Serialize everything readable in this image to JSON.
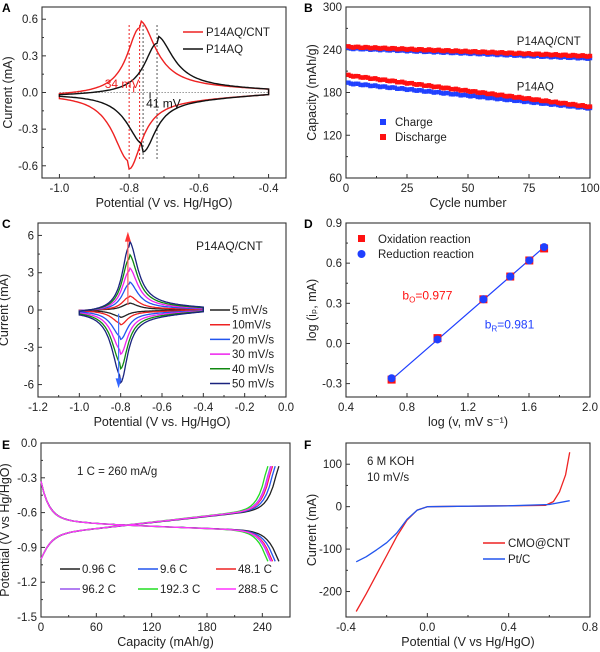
{
  "chart_data": [
    {
      "panel": "A",
      "type": "line",
      "xlabel": "Potential (V vs. Hg/HgO)",
      "ylabel": "Current (mA)",
      "xlim": [
        -1.05,
        -0.35
      ],
      "ylim": [
        -0.7,
        0.7
      ],
      "xticks": [
        -1.0,
        -0.8,
        -0.6,
        -0.4
      ],
      "xtick_labels": [
        "-1.0",
        "-0.8",
        "-0.6",
        "-0.4"
      ],
      "yticks": [
        -0.6,
        -0.3,
        0.0,
        0.3,
        0.6
      ],
      "ytick_labels": [
        "-0.6",
        "-0.3",
        "0.0",
        "0.3",
        "0.6"
      ],
      "legend": {
        "position": "top-right",
        "entries": [
          "P14AQ/CNT",
          "P14AQ"
        ]
      },
      "series": [
        {
          "name": "P14AQ/CNT",
          "color": "#ee2222",
          "anodic_peak": [
            -0.77,
            0.54
          ],
          "cathodic_peak": [
            -0.8,
            -0.55
          ],
          "x_range": [
            -1.0,
            -0.4
          ]
        },
        {
          "name": "P14AQ",
          "color": "#111111",
          "anodic_peak": [
            -0.72,
            0.41
          ],
          "cathodic_peak": [
            -0.76,
            -0.41
          ],
          "x_range": [
            -1.0,
            -0.4
          ]
        }
      ],
      "annotations": [
        {
          "text": "34 mV",
          "color": "#ee2222",
          "x": -0.87,
          "y": 0.07
        },
        {
          "text": "41 mV",
          "color": "#111111",
          "x": -0.76,
          "y": -0.09
        }
      ],
      "guide_lines": [
        {
          "x": -0.77,
          "color": "#ee2222"
        },
        {
          "x": -0.8,
          "color": "#ee2222"
        },
        {
          "x": -0.72,
          "color": "#555555"
        },
        {
          "x": -0.76,
          "color": "#555555"
        }
      ]
    },
    {
      "panel": "B",
      "type": "scatter",
      "xlabel": "Cycle number",
      "ylabel": "Capacity (mAh/g)",
      "xlim": [
        0,
        100
      ],
      "ylim": [
        60,
        300
      ],
      "xticks": [
        0,
        25,
        50,
        75,
        100
      ],
      "xtick_labels": [
        "0",
        "25",
        "50",
        "75",
        "100"
      ],
      "yticks": [
        60,
        120,
        180,
        240,
        300
      ],
      "ytick_labels": [
        "60",
        "120",
        "180",
        "240",
        "300"
      ],
      "legend": {
        "position": "center-left",
        "entries": [
          "Charge",
          "Discharge"
        ]
      },
      "series": [
        {
          "name": "P14AQ/CNT Charge",
          "color": "#1f3fff",
          "x": [
            1,
            100
          ],
          "y_start": 242,
          "y_end": 228
        },
        {
          "name": "P14AQ/CNT Discharge",
          "color": "#ff1111",
          "x": [
            1,
            100
          ],
          "y_start": 244,
          "y_end": 231
        },
        {
          "name": "P14AQ Charge",
          "color": "#1f3fff",
          "x": [
            1,
            100
          ],
          "y_start": 193,
          "y_end": 158
        },
        {
          "name": "P14AQ Discharge",
          "color": "#ff1111",
          "x": [
            1,
            100
          ],
          "y_start": 204,
          "y_end": 160
        }
      ],
      "annotations": [
        {
          "text": "P14AQ/CNT",
          "x": 70,
          "y": 247
        },
        {
          "text": "P14AQ",
          "x": 70,
          "y": 183
        }
      ]
    },
    {
      "panel": "C",
      "type": "line",
      "xlabel": "Potential (V vs. Hg/HgO)",
      "ylabel": "Current (mA)",
      "xlim": [
        -1.2,
        0.0
      ],
      "ylim": [
        -7,
        7
      ],
      "xticks": [
        -1.2,
        -1.0,
        -0.8,
        -0.6,
        -0.4,
        -0.2,
        0.0
      ],
      "xtick_labels": [
        "-1.2",
        "-1.0",
        "-0.8",
        "-0.6",
        "-0.4",
        "-0.2",
        "0.0"
      ],
      "yticks": [
        -6,
        -3,
        0,
        3,
        6
      ],
      "ytick_labels": [
        "-6",
        "-3",
        "0",
        "3",
        "6"
      ],
      "title": "P14AQ/CNT",
      "legend": {
        "position": "right",
        "entries": [
          "5 mV/s",
          "10mV/s",
          "20 mV/s",
          "30 mV/s",
          "40 mV/s",
          "50 mV/s"
        ]
      },
      "series": [
        {
          "name": "5 mV/s",
          "color": "#222222",
          "anodic_peak": [
            -0.76,
            0.52
          ],
          "cathodic_peak": [
            -0.8,
            -0.52
          ]
        },
        {
          "name": "10mV/s",
          "color": "#ee2222",
          "anodic_peak": [
            -0.76,
            1.05
          ],
          "cathodic_peak": [
            -0.8,
            -1.05
          ]
        },
        {
          "name": "20 mV/s",
          "color": "#2255ee",
          "anodic_peak": [
            -0.76,
            2.1
          ],
          "cathodic_peak": [
            -0.8,
            -2.1
          ]
        },
        {
          "name": "30 mV/s",
          "color": "#ee22ee",
          "anodic_peak": [
            -0.76,
            3.15
          ],
          "cathodic_peak": [
            -0.8,
            -3.15
          ]
        },
        {
          "name": "40 mV/s",
          "color": "#118811",
          "anodic_peak": [
            -0.76,
            4.15
          ],
          "cathodic_peak": [
            -0.8,
            -4.2
          ]
        },
        {
          "name": "50 mV/s",
          "color": "#1a237e",
          "anodic_peak": [
            -0.76,
            5.15
          ],
          "cathodic_peak": [
            -0.8,
            -5.2
          ]
        }
      ]
    },
    {
      "panel": "D",
      "type": "scatter",
      "xlabel": "log (v, mV s⁻¹)",
      "ylabel": "log (iₚ, mA)",
      "xlim": [
        0.4,
        2.0
      ],
      "ylim": [
        -0.4,
        0.9
      ],
      "xticks": [
        0.4,
        0.8,
        1.2,
        1.6,
        2.0
      ],
      "xtick_labels": [
        "0.4",
        "0.8",
        "1.2",
        "1.6",
        "2.0"
      ],
      "yticks": [
        -0.3,
        0.0,
        0.3,
        0.6,
        0.9
      ],
      "ytick_labels": [
        "-0.3",
        "0.0",
        "0.3",
        "0.6",
        "0.9"
      ],
      "legend": {
        "position": "top-left",
        "entries": [
          "Oxidation reaction",
          "Reduction reaction"
        ]
      },
      "series": [
        {
          "name": "Oxidation reaction",
          "color": "#ff1111",
          "marker": "square",
          "x": [
            0.699,
            1.0,
            1.301,
            1.477,
            1.602,
            1.699
          ],
          "y": [
            -0.27,
            0.04,
            0.33,
            0.5,
            0.62,
            0.71
          ]
        },
        {
          "name": "Reduction reaction",
          "color": "#1f3fff",
          "marker": "circle",
          "x": [
            0.699,
            1.0,
            1.301,
            1.477,
            1.602,
            1.699
          ],
          "y": [
            -0.26,
            0.03,
            0.33,
            0.5,
            0.62,
            0.72
          ]
        }
      ],
      "fit_line": {
        "color": "#1f3fff",
        "x": [
          0.699,
          1.699
        ],
        "y": [
          -0.27,
          0.72
        ]
      },
      "annotations": [
        {
          "text": "b",
          "sub": "O",
          "value": "=0.977",
          "color": "#ff1111",
          "x": 0.77,
          "y": 0.33
        },
        {
          "text": "b",
          "sub": "R",
          "value": "=0.981",
          "color": "#1f3fff",
          "x": 1.31,
          "y": 0.11
        }
      ]
    },
    {
      "panel": "E",
      "type": "line",
      "xlabel": "Capacity (mAh/g)",
      "ylabel": "Potential (V vs Hg/HgO)",
      "xlim": [
        0,
        270
      ],
      "ylim": [
        -1.5,
        0.0
      ],
      "xticks": [
        0,
        60,
        120,
        180,
        240
      ],
      "xtick_labels": [
        "0",
        "60",
        "120",
        "180",
        "240"
      ],
      "yticks": [
        -1.5,
        -1.2,
        -0.9,
        -0.6,
        -0.3,
        0.0
      ],
      "ytick_labels": [
        "-1.5",
        "-1.2",
        "-0.9",
        "-0.6",
        "-0.3",
        "0.0"
      ],
      "annotation": "1 C = 260 mA/g",
      "legend": {
        "position": "bottom",
        "entries": [
          "0.96 C",
          "9.6 C",
          "48.1 C",
          "96.2 C",
          "192.3 C",
          "288.5 C"
        ]
      },
      "series": [
        {
          "name": "0.96 C",
          "color": "#222222",
          "max_capacity": 258
        },
        {
          "name": "9.6 C",
          "color": "#2255ee",
          "max_capacity": 254
        },
        {
          "name": "48.1 C",
          "color": "#ee2222",
          "max_capacity": 251
        },
        {
          "name": "96.2 C",
          "color": "#9955ee",
          "max_capacity": 249
        },
        {
          "name": "192.3 C",
          "color": "#22dd22",
          "max_capacity": 246
        },
        {
          "name": "288.5 C",
          "color": "#ff33ff",
          "max_capacity": 250
        }
      ]
    },
    {
      "panel": "F",
      "type": "line",
      "xlabel": "Potential (V vs Hg/HgO)",
      "ylabel": "Current (mA)",
      "xlim": [
        -0.4,
        0.8
      ],
      "ylim": [
        -260,
        150
      ],
      "xticks": [
        -0.4,
        0.0,
        0.4,
        0.8
      ],
      "xtick_labels": [
        "-0.4",
        "0.0",
        "0.4",
        "0.8"
      ],
      "yticks": [
        -200,
        -100,
        0,
        100
      ],
      "ytick_labels": [
        "-200",
        "-100",
        "0",
        "100"
      ],
      "annotation_lines": [
        "6 M KOH",
        "10 mV/s"
      ],
      "legend": {
        "position": "right",
        "entries": [
          "CMO@CNT",
          "Pt/C"
        ]
      },
      "series": [
        {
          "name": "CMO@CNT",
          "color": "#ee2222",
          "x": [
            -0.35,
            -0.3,
            -0.25,
            -0.2,
            -0.15,
            -0.1,
            -0.05,
            0.0,
            0.2,
            0.4,
            0.58,
            0.62,
            0.65,
            0.68,
            0.7
          ],
          "y": [
            -247,
            -205,
            -160,
            -115,
            -70,
            -32,
            -8,
            0,
            1,
            2,
            3,
            12,
            35,
            75,
            128
          ]
        },
        {
          "name": "Pt/C",
          "color": "#2255ee",
          "x": [
            -0.35,
            -0.3,
            -0.25,
            -0.2,
            -0.15,
            -0.1,
            -0.05,
            0.0,
            0.2,
            0.4,
            0.6,
            0.7
          ],
          "y": [
            -130,
            -118,
            -102,
            -85,
            -62,
            -30,
            -8,
            0,
            1,
            2,
            5,
            14
          ]
        }
      ]
    }
  ]
}
